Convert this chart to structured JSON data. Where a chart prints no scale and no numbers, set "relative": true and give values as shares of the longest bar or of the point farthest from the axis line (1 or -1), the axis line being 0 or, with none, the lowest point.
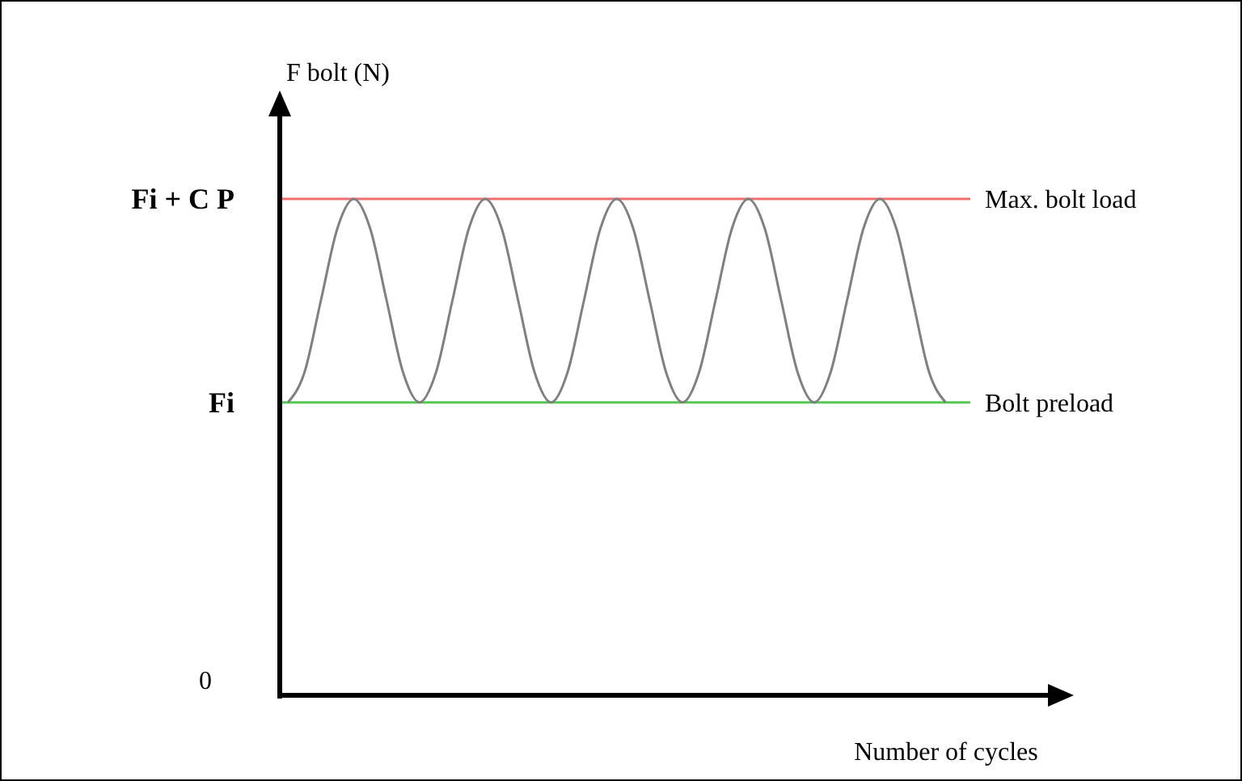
{
  "chart_data": {
    "type": "line",
    "relative": true,
    "xlabel": "Number of cycles",
    "ylabel": "F bolt (N)",
    "categories": [
      null,
      null,
      null,
      null,
      null,
      null,
      null,
      null,
      null,
      null,
      null,
      null,
      null,
      null,
      null,
      null,
      null,
      null,
      null,
      null,
      null,
      null,
      null,
      null,
      null,
      null,
      null,
      null,
      null,
      null,
      null,
      null,
      null,
      null,
      null,
      null,
      null,
      null,
      null,
      null,
      null
    ],
    "series": [
      {
        "color": "#808080",
        "values": [
          0.59,
          0.65,
          0.795,
          0.94,
          1,
          0.94,
          0.795,
          0.65,
          0.59,
          0.65,
          0.795,
          0.94,
          1,
          0.94,
          0.795,
          0.65,
          0.59,
          0.65,
          0.795,
          0.94,
          1,
          0.94,
          0.795,
          0.65,
          0.59,
          0.65,
          0.795,
          0.94,
          1,
          0.94,
          0.795,
          0.65,
          0.59,
          0.65,
          0.795,
          0.94,
          1,
          0.94,
          0.795,
          0.65,
          0.59
        ]
      }
    ],
    "ref_lines": [
      {
        "axis": "y",
        "value": 1,
        "label": "Max. bolt load",
        "color": "#f07070"
      },
      {
        "axis": "y",
        "value": 0.59,
        "label": "Bolt preload",
        "color": "#55c855"
      }
    ],
    "annotations": [
      "0",
      "Fi + C P",
      "Fi"
    ],
    "grid": false,
    "legend": false,
    "marker": "none",
    "line_style": "solid"
  }
}
